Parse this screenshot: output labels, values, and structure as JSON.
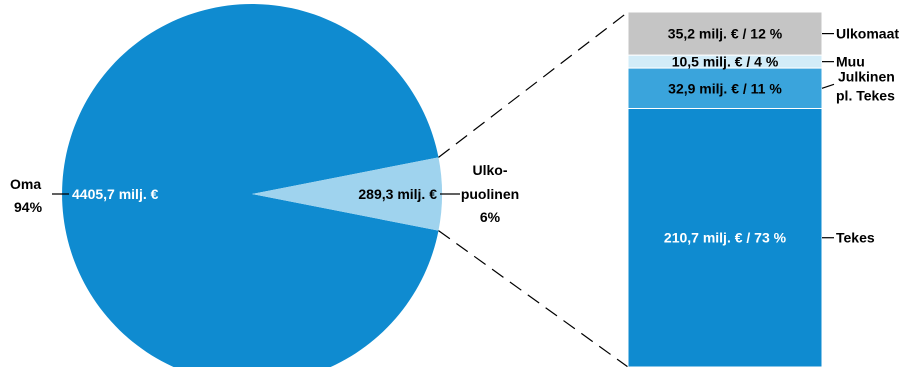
{
  "colors": {
    "main": "#0f8bd0",
    "slice": "#9fd3ee",
    "seg_ulkomaat": "#c5c5c5",
    "seg_muu": "#d2ecf8",
    "seg_julkinen": "#3aa4dc",
    "seg_tekes": "#0f8bd0",
    "text_dark": "#000000",
    "text_light": "#ffffff"
  },
  "chart_data": [
    {
      "type": "pie",
      "slices": [
        {
          "name": "Oma",
          "value": 4405.7,
          "value_label": "4405,7 milj. €",
          "percent_label": "94%",
          "color": "#0f8bd0"
        },
        {
          "name": "Ulko-\npuolinen",
          "name_lines": [
            "Ulko-",
            "puolinen"
          ],
          "value": 289.3,
          "value_label": "289,3 milj. €",
          "percent_label": "6%",
          "color": "#9fd3ee"
        }
      ]
    },
    {
      "type": "bar",
      "stacked": true,
      "categories": [
        "Ulkomaat",
        "Muu",
        "Julkinen pl. Tekes",
        "Tekes"
      ],
      "category_lines": [
        [
          "Ulkomaat"
        ],
        [
          "Muu"
        ],
        [
          "Julkinen",
          "pl. Tekes"
        ],
        [
          "Tekes"
        ]
      ],
      "values": [
        35.2,
        10.5,
        32.9,
        210.7
      ],
      "percents": [
        12,
        4,
        11,
        73
      ],
      "value_labels": [
        "35,2 milj. € /  12 %",
        "10,5 milj. € /  4 %",
        "32,9 milj. € /  11 %",
        "210,7 milj. € / 73 %"
      ]
    }
  ]
}
